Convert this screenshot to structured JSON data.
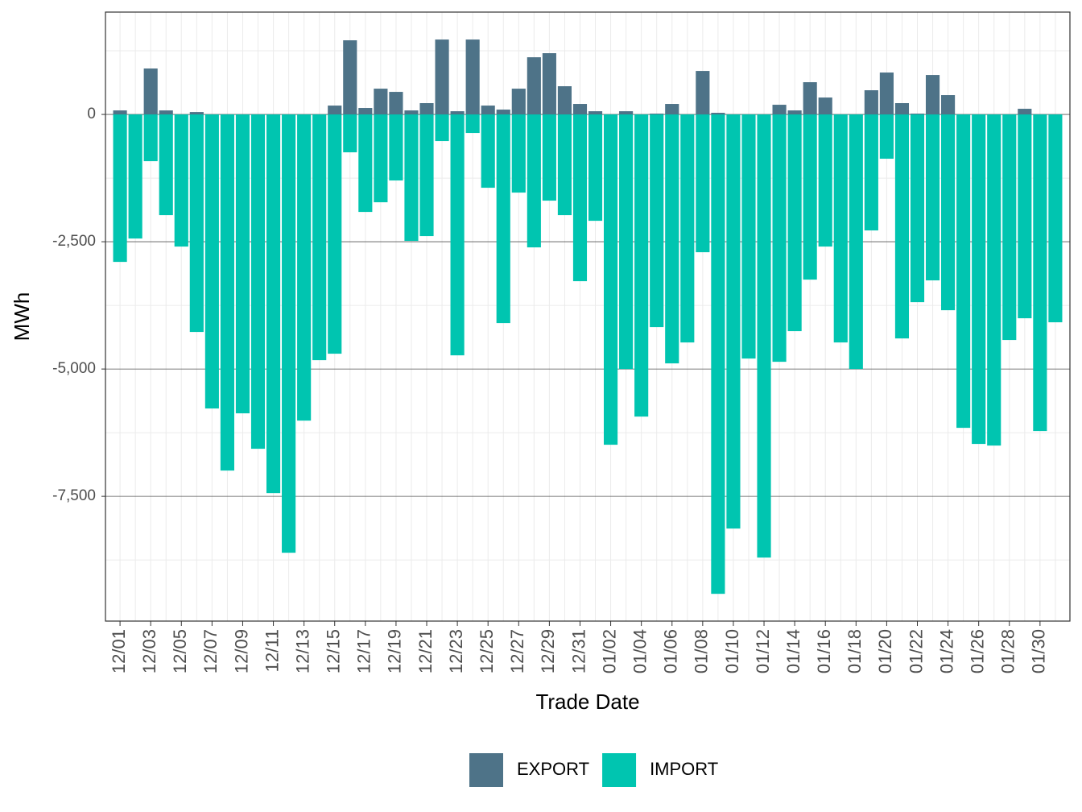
{
  "chart_data": {
    "type": "bar",
    "stacked": false,
    "x_label": "Trade Date",
    "y_label": "MWh",
    "categories": [
      "12/01",
      null,
      "12/03",
      null,
      "12/05",
      null,
      "12/07",
      null,
      "12/09",
      null,
      "12/11",
      null,
      "12/13",
      null,
      "12/15",
      null,
      "12/17",
      null,
      "12/19",
      null,
      "12/21",
      null,
      "12/23",
      null,
      "12/25",
      null,
      "12/27",
      null,
      "12/29",
      null,
      "12/31",
      null,
      "01/02",
      null,
      "01/04",
      null,
      "01/06",
      null,
      "01/08",
      null,
      "01/10",
      null,
      "01/12",
      null,
      "01/14",
      null,
      "01/16",
      null,
      "01/18",
      null,
      "01/20",
      null,
      "01/22",
      null,
      "01/24",
      null,
      "01/26",
      null,
      "01/28",
      null,
      "01/30",
      null
    ],
    "series": [
      {
        "name": "EXPORT",
        "color": "#4e7388",
        "values": [
          79,
          0,
          902,
          79,
          0,
          47,
          0,
          0,
          0,
          0,
          0,
          0,
          0,
          0,
          174,
          1456,
          127,
          506,
          443,
          79,
          222,
          1471,
          63,
          1471,
          174,
          95,
          506,
          1123,
          1203,
          554,
          206,
          63,
          0,
          63,
          0,
          16,
          206,
          0,
          854,
          32,
          0,
          0,
          0,
          190,
          79,
          633,
          332,
          0,
          0,
          475,
          823,
          222,
          16,
          775,
          380,
          0,
          0,
          0,
          0,
          111,
          0,
          0
        ]
      },
      {
        "name": "IMPORT",
        "color": "#00c5b0",
        "values": [
          -2896,
          -2437,
          -918,
          -1978,
          -2595,
          -4272,
          -5775,
          -6994,
          -5870,
          -6566,
          -7437,
          -8608,
          -6013,
          -4826,
          -4699,
          -744,
          -1915,
          -1725,
          -1297,
          -2484,
          -2389,
          -522,
          -4731,
          -364,
          -1440,
          -4098,
          -1535,
          -2611,
          -1693,
          -1978,
          -3275,
          -2089,
          -6487,
          -5000,
          -5934,
          -4177,
          -4889,
          -4478,
          -2706,
          -9415,
          -8133,
          -4794,
          -8703,
          -4858,
          -4256,
          -3244,
          -2595,
          -4478,
          -5000,
          -2278,
          -870,
          -4399,
          -3687,
          -3259,
          -3845,
          -6155,
          -6471,
          -6503,
          -4430,
          -4003,
          -6218,
          -4082
        ]
      }
    ],
    "ylim": [
      -9950,
      2010
    ],
    "yticks": [
      {
        "value": -7500,
        "label": "-7,500"
      },
      {
        "value": -5000,
        "label": "-5,000"
      },
      {
        "value": -2500,
        "label": "-2,500"
      },
      0
    ],
    "grid": true,
    "legend": "bottom"
  }
}
